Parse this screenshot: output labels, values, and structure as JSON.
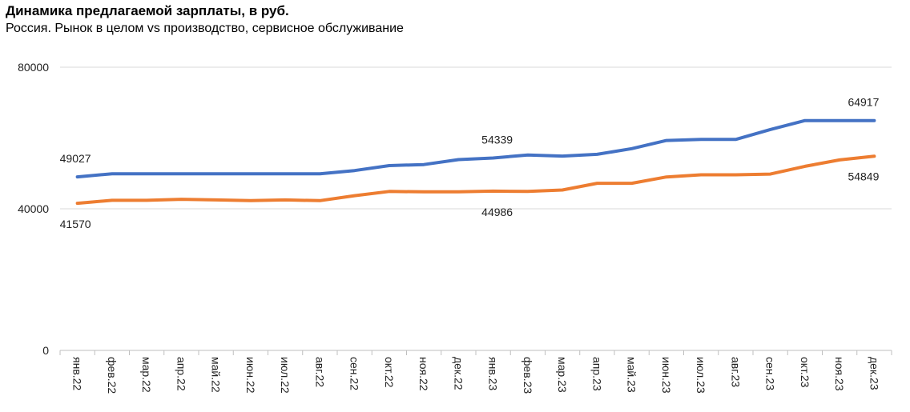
{
  "chart_data": {
    "type": "line",
    "title": "Динамика предлагаемой зарплаты, в руб.",
    "subtitle": "Россия. Рынок в целом vs производство, сервисное обслуживание",
    "categories": [
      "янв.22",
      "фев.22",
      "мар.22",
      "апр.22",
      "май.22",
      "июн.22",
      "июл.22",
      "авг.22",
      "сен.22",
      "окт.22",
      "ноя.22",
      "дек.22",
      "янв.23",
      "фев.23",
      "мар.23",
      "апр.23",
      "май.23",
      "июн.23",
      "июл.23",
      "авг.23",
      "сен.23",
      "окт.23",
      "ноя.23",
      "дек.23"
    ],
    "y_ticks": [
      "0",
      "40000",
      "80000"
    ],
    "ylim": [
      0,
      80000
    ],
    "grid": true,
    "series": [
      {
        "color": "#4472C4",
        "values": [
          49027,
          49900,
          49900,
          49900,
          49900,
          49900,
          49900,
          49900,
          50800,
          52200,
          52500,
          53900,
          54339,
          55200,
          54900,
          55400,
          57000,
          59300,
          59600,
          59600,
          62400,
          64917,
          64917,
          64917
        ],
        "labels": [
          {
            "index": 0,
            "text": "49027"
          },
          {
            "index": 12,
            "text": "54339"
          },
          {
            "index": 23,
            "text": "64917"
          }
        ]
      },
      {
        "color": "#ED7D31",
        "values": [
          41570,
          42400,
          42400,
          42700,
          42500,
          42300,
          42500,
          42300,
          43700,
          44900,
          44800,
          44800,
          44986,
          44900,
          45300,
          47200,
          47200,
          49000,
          49600,
          49600,
          49800,
          52000,
          53800,
          54849
        ],
        "labels": [
          {
            "index": 0,
            "text": "41570"
          },
          {
            "index": 12,
            "text": "44986"
          },
          {
            "index": 23,
            "text": "54849"
          }
        ]
      }
    ]
  }
}
